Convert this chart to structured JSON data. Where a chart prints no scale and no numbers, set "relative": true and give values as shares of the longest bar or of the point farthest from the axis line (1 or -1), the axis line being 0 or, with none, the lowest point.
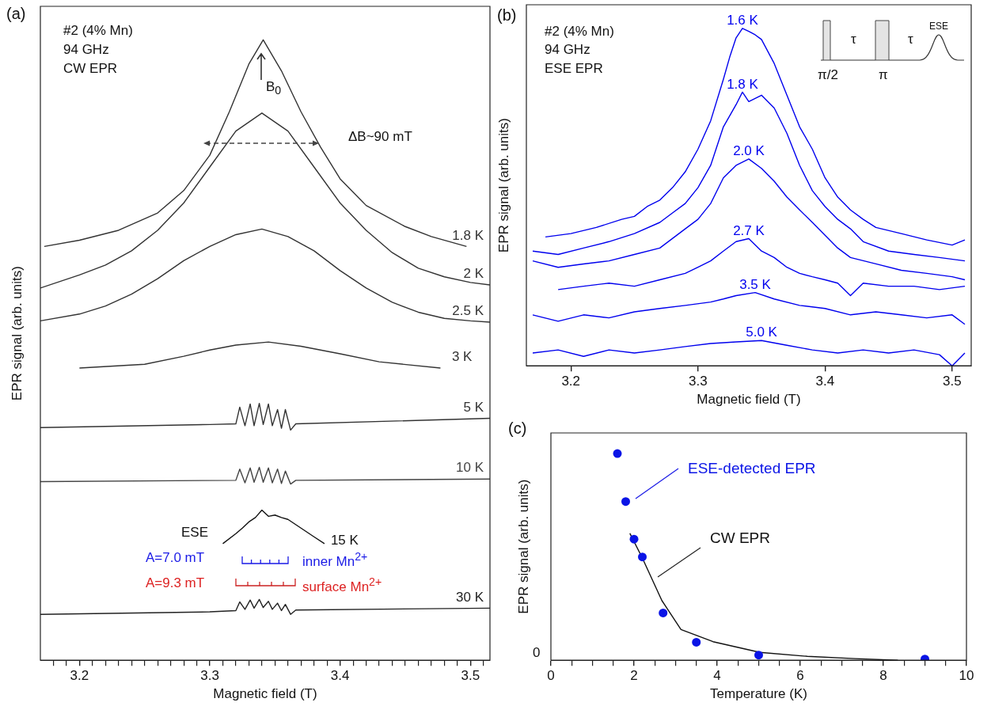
{
  "chart_data": [
    {
      "type": "line",
      "title": "(a)",
      "xlabel": "Magnetic field (T)",
      "ylabel": "EPR signal (arb. units)",
      "relative": true,
      "marker": "none",
      "xlim": [
        3.17,
        3.515
      ],
      "xticks": [
        {
          "value": 3.18,
          "label": null
        },
        {
          "value": 3.19,
          "label": null
        },
        3.2,
        {
          "value": 3.21,
          "label": null
        },
        {
          "value": 3.22,
          "label": null
        },
        {
          "value": 3.23,
          "label": null
        },
        {
          "value": 3.24,
          "label": null
        },
        {
          "value": 3.25,
          "label": null
        },
        {
          "value": 3.26,
          "label": null
        },
        {
          "value": 3.27,
          "label": null
        },
        {
          "value": 3.28,
          "label": null
        },
        {
          "value": 3.29,
          "label": null
        },
        3.3,
        {
          "value": 3.31,
          "label": null
        },
        {
          "value": 3.32,
          "label": null
        },
        {
          "value": 3.33,
          "label": null
        },
        {
          "value": 3.34,
          "label": null
        },
        {
          "value": 3.35,
          "label": null
        },
        {
          "value": 3.36,
          "label": null
        },
        {
          "value": 3.37,
          "label": null
        },
        {
          "value": 3.38,
          "label": null
        },
        {
          "value": 3.39,
          "label": null
        },
        3.4,
        {
          "value": 3.41,
          "label": null
        },
        {
          "value": 3.42,
          "label": null
        },
        {
          "value": 3.43,
          "label": null
        },
        {
          "value": 3.44,
          "label": null
        },
        {
          "value": 3.45,
          "label": null
        },
        {
          "value": 3.46,
          "label": null
        },
        {
          "value": 3.47,
          "label": null
        },
        {
          "value": 3.48,
          "label": null
        },
        {
          "value": 3.49,
          "label": null
        },
        3.5,
        {
          "value": 3.51,
          "label": null
        }
      ],
      "annotations": [
        "#2 (4% Mn)",
        "94 GHz",
        "CW EPR",
        "B$_{0}$",
        "ΔB~90 mT",
        "ESE",
        "A=7.0 mT",
        "inner Mn$^{2+}$",
        "A=9.3 mT",
        "surface Mn$^{2+}$"
      ],
      "series": [
        {
          "name": "1.8 K",
          "color": "#333333",
          "x": [
            3.173,
            3.2,
            3.23,
            3.26,
            3.28,
            3.3,
            3.315,
            3.33,
            3.341,
            3.355,
            3.37,
            3.385,
            3.4,
            3.42,
            3.45,
            3.47,
            3.497
          ],
          "values": [
            0.667,
            0.677,
            0.693,
            0.721,
            0.757,
            0.814,
            0.884,
            0.961,
            1,
            0.95,
            0.884,
            0.827,
            0.776,
            0.733,
            0.699,
            0.683,
            0.667
          ]
        },
        {
          "name": "2 K",
          "color": "#333333",
          "x": [
            3.17,
            3.2,
            3.22,
            3.24,
            3.26,
            3.28,
            3.3,
            3.32,
            3.34,
            3.36,
            3.38,
            3.4,
            3.42,
            3.44,
            3.46,
            3.48,
            3.5,
            3.515
          ],
          "values": [
            0.6,
            0.621,
            0.637,
            0.66,
            0.693,
            0.737,
            0.795,
            0.853,
            0.882,
            0.853,
            0.795,
            0.737,
            0.693,
            0.657,
            0.632,
            0.618,
            0.609,
            0.605
          ]
        },
        {
          "name": "2.5 K",
          "color": "#333333",
          "x": [
            3.17,
            3.2,
            3.22,
            3.24,
            3.26,
            3.28,
            3.3,
            3.32,
            3.34,
            3.36,
            3.38,
            3.4,
            3.42,
            3.44,
            3.46,
            3.48,
            3.5,
            3.515
          ],
          "values": [
            0.547,
            0.558,
            0.571,
            0.59,
            0.615,
            0.644,
            0.667,
            0.686,
            0.695,
            0.683,
            0.66,
            0.628,
            0.6,
            0.577,
            0.561,
            0.551,
            0.547,
            0.545
          ]
        },
        {
          "name": "3 K",
          "color": "#333333",
          "x": [
            3.2,
            3.25,
            3.28,
            3.3,
            3.32,
            3.345,
            3.37,
            3.4,
            3.43,
            3.477
          ],
          "values": [
            0.471,
            0.477,
            0.49,
            0.5,
            0.508,
            0.513,
            0.506,
            0.494,
            0.481,
            0.471
          ]
        },
        {
          "name": "5 K",
          "color": "#333333",
          "x": [
            3.17,
            3.3,
            3.32,
            3.323,
            3.327,
            3.331,
            3.334,
            3.338,
            3.341,
            3.345,
            3.348,
            3.352,
            3.355,
            3.358,
            3.362,
            3.366,
            3.515
          ],
          "values": [
            0.375,
            0.38,
            0.381,
            0.408,
            0.378,
            0.413,
            0.378,
            0.414,
            0.38,
            0.413,
            0.378,
            0.404,
            0.374,
            0.404,
            0.371,
            0.381,
            0.39
          ]
        },
        {
          "name": "10 K",
          "color": "#444444",
          "x": [
            3.17,
            3.32,
            3.323,
            3.327,
            3.331,
            3.334,
            3.338,
            3.341,
            3.345,
            3.348,
            3.352,
            3.355,
            3.358,
            3.362,
            3.366,
            3.515
          ],
          "values": [
            0.288,
            0.29,
            0.308,
            0.286,
            0.31,
            0.287,
            0.311,
            0.287,
            0.31,
            0.286,
            0.308,
            0.285,
            0.305,
            0.284,
            0.29,
            0.292
          ]
        },
        {
          "name": "15 K",
          "color": "#111111",
          "x": [
            3.31,
            3.32,
            3.325,
            3.33,
            3.335,
            3.34,
            3.345,
            3.35,
            3.355,
            3.36,
            3.37,
            3.38,
            3.388
          ],
          "values": [
            0.188,
            0.204,
            0.213,
            0.223,
            0.23,
            0.242,
            0.232,
            0.234,
            0.23,
            0.227,
            0.213,
            0.199,
            0.188
          ]
        },
        {
          "name": "30 K",
          "color": "#222222",
          "x": [
            3.17,
            3.3,
            3.32,
            3.323,
            3.327,
            3.331,
            3.334,
            3.338,
            3.341,
            3.345,
            3.348,
            3.352,
            3.355,
            3.358,
            3.362,
            3.366,
            3.515
          ],
          "values": [
            0.074,
            0.078,
            0.08,
            0.094,
            0.082,
            0.097,
            0.084,
            0.098,
            0.085,
            0.095,
            0.082,
            0.092,
            0.08,
            0.09,
            0.074,
            0.081,
            0.084
          ]
        }
      ]
    },
    {
      "type": "line",
      "title": "(b)",
      "xlabel": "Magnetic field (T)",
      "ylabel": "EPR signal (arb. units)",
      "relative": true,
      "marker": "none",
      "xlim": [
        3.165,
        3.515
      ],
      "xticks": [
        3.2,
        3.3,
        3.4,
        3.5
      ],
      "annotations": [
        "#2 (4% Mn)",
        "94 GHz",
        "ESE EPR",
        "τ",
        "τ",
        "π/2",
        "π",
        "ESE"
      ],
      "series": [
        {
          "name": "1.6 K",
          "color": "#0000ee",
          "x": [
            3.18,
            3.2,
            3.22,
            3.24,
            3.25,
            3.26,
            3.27,
            3.28,
            3.29,
            3.3,
            3.31,
            3.32,
            3.325,
            3.33,
            3.335,
            3.34,
            3.345,
            3.35,
            3.36,
            3.37,
            3.38,
            3.39,
            3.4,
            3.41,
            3.42,
            3.43,
            3.44,
            3.46,
            3.48,
            3.5,
            3.51
          ],
          "values": [
            0.382,
            0.392,
            0.41,
            0.434,
            0.443,
            0.472,
            0.491,
            0.528,
            0.575,
            0.642,
            0.726,
            0.849,
            0.915,
            0.972,
            1,
            0.991,
            0.981,
            0.967,
            0.896,
            0.802,
            0.708,
            0.642,
            0.557,
            0.5,
            0.462,
            0.434,
            0.41,
            0.392,
            0.373,
            0.358,
            0.373
          ]
        },
        {
          "name": "1.8 K",
          "color": "#0000ee",
          "x": [
            3.17,
            3.19,
            3.21,
            3.23,
            3.25,
            3.27,
            3.28,
            3.29,
            3.3,
            3.31,
            3.32,
            3.33,
            3.335,
            3.34,
            3.35,
            3.36,
            3.37,
            3.38,
            3.39,
            3.4,
            3.41,
            3.42,
            3.43,
            3.45,
            3.47,
            3.49,
            3.51
          ],
          "values": [
            0.34,
            0.33,
            0.349,
            0.368,
            0.392,
            0.425,
            0.453,
            0.481,
            0.528,
            0.594,
            0.708,
            0.774,
            0.811,
            0.783,
            0.802,
            0.764,
            0.689,
            0.594,
            0.519,
            0.472,
            0.434,
            0.406,
            0.368,
            0.34,
            0.33,
            0.321,
            0.311
          ]
        },
        {
          "name": "2.0 K",
          "color": "#0000ee",
          "x": [
            3.17,
            3.19,
            3.21,
            3.23,
            3.25,
            3.27,
            3.29,
            3.3,
            3.31,
            3.32,
            3.33,
            3.34,
            3.35,
            3.36,
            3.37,
            3.38,
            3.39,
            3.4,
            3.41,
            3.42,
            3.44,
            3.46,
            3.48,
            3.5,
            3.51
          ],
          "values": [
            0.311,
            0.292,
            0.302,
            0.311,
            0.33,
            0.349,
            0.406,
            0.434,
            0.481,
            0.557,
            0.594,
            0.613,
            0.585,
            0.547,
            0.5,
            0.462,
            0.425,
            0.387,
            0.349,
            0.321,
            0.302,
            0.283,
            0.274,
            0.264,
            0.255
          ]
        },
        {
          "name": "2.7 K",
          "color": "#0000ee",
          "x": [
            3.19,
            3.21,
            3.23,
            3.25,
            3.27,
            3.29,
            3.3,
            3.31,
            3.32,
            3.33,
            3.34,
            3.35,
            3.36,
            3.37,
            3.38,
            3.39,
            3.4,
            3.41,
            3.42,
            3.43,
            3.45,
            3.47,
            3.49,
            3.51
          ],
          "values": [
            0.226,
            0.236,
            0.245,
            0.236,
            0.255,
            0.274,
            0.292,
            0.311,
            0.34,
            0.368,
            0.377,
            0.34,
            0.321,
            0.292,
            0.274,
            0.264,
            0.255,
            0.245,
            0.208,
            0.245,
            0.236,
            0.236,
            0.226,
            0.236
          ]
        },
        {
          "name": "3.5 K",
          "color": "#0000ee",
          "x": [
            3.17,
            3.19,
            3.21,
            3.23,
            3.25,
            3.27,
            3.29,
            3.31,
            3.32,
            3.33,
            3.345,
            3.36,
            3.38,
            3.4,
            3.42,
            3.44,
            3.46,
            3.48,
            3.5,
            3.51
          ],
          "values": [
            0.151,
            0.132,
            0.151,
            0.142,
            0.16,
            0.17,
            0.179,
            0.189,
            0.198,
            0.208,
            0.217,
            0.198,
            0.179,
            0.17,
            0.151,
            0.16,
            0.151,
            0.142,
            0.151,
            0.123
          ]
        },
        {
          "name": "5.0 K",
          "color": "#0000ee",
          "x": [
            3.17,
            3.19,
            3.21,
            3.23,
            3.25,
            3.27,
            3.29,
            3.31,
            3.33,
            3.35,
            3.37,
            3.39,
            3.41,
            3.43,
            3.45,
            3.47,
            3.49,
            3.5,
            3.51
          ],
          "values": [
            0.038,
            0.047,
            0.028,
            0.047,
            0.038,
            0.047,
            0.057,
            0.066,
            0.071,
            0.075,
            0.061,
            0.047,
            0.038,
            0.047,
            0.038,
            0.047,
            0.033,
            0,
            0.038
          ]
        }
      ]
    },
    {
      "type": "scatter",
      "title": "(c)",
      "xlabel": "Temperature (K)",
      "ylabel": "EPR signal (arb. units)",
      "relative": true,
      "xlim": [
        0,
        10
      ],
      "xticks": [
        0,
        {
          "value": 0.5,
          "label": null
        },
        {
          "value": 1,
          "label": null
        },
        {
          "value": 1.5,
          "label": null
        },
        2,
        {
          "value": 2.5,
          "label": null
        },
        {
          "value": 3,
          "label": null
        },
        {
          "value": 3.5,
          "label": null
        },
        4,
        {
          "value": 4.5,
          "label": null
        },
        {
          "value": 5,
          "label": null
        },
        {
          "value": 5.5,
          "label": null
        },
        6,
        {
          "value": 6.5,
          "label": null
        },
        {
          "value": 7,
          "label": null
        },
        {
          "value": 7.5,
          "label": null
        },
        8,
        {
          "value": 8.5,
          "label": null
        },
        {
          "value": 9,
          "label": null
        },
        {
          "value": 9.5,
          "label": null
        },
        10
      ],
      "annotations": [
        "0"
      ],
      "series": [
        {
          "name": "ESE-detected EPR",
          "marker": "circle",
          "color": "#0a14e6",
          "x": [
            1.6,
            1.8,
            2.0,
            2.2,
            2.7,
            3.5,
            5.0,
            9.0
          ],
          "values": [
            1,
            0.768,
            0.586,
            0.5,
            0.229,
            0.087,
            0.025,
            0.006
          ]
        },
        {
          "name": "CW EPR",
          "type": "line",
          "marker": "none",
          "color": "#111111",
          "x": [
            1.9,
            2.2,
            2.67,
            3.13,
            3.9,
            5.03,
            6.17,
            7.32,
            8.35
          ],
          "values": [
            0.614,
            0.495,
            0.289,
            0.149,
            0.09,
            0.038,
            0.019,
            0.008,
            0
          ]
        }
      ]
    }
  ]
}
